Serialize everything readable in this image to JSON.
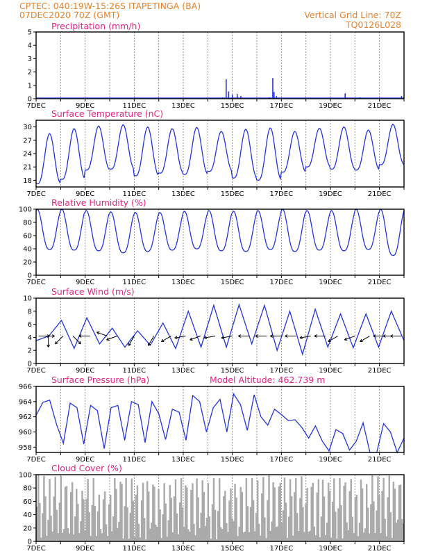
{
  "header": {
    "line1_left": "CPTEC:   040:19W-15:26S   ITAPETINGA (BA)",
    "line2_left": "07DEC2020 70Z (GMT)",
    "line2_right": "Vertical Grid Line: 70Z",
    "line3_right": "TQ0126L028"
  },
  "colors": {
    "header": "#e8822a",
    "title": "#e0257e",
    "line": "#2233dd",
    "bar": "#aaaaaa",
    "grid": "#7a7a7a"
  },
  "x_axis": {
    "labels": [
      "7DEC",
      "9DEC",
      "11DEC",
      "13DEC",
      "15DEC",
      "17DEC",
      "19DEC",
      "21DEC"
    ],
    "days": 15
  },
  "panels": [
    {
      "key": "precip",
      "title": "Precipitation (mm/h)"
    },
    {
      "key": "temp",
      "title": "Surface Temperature (nC)"
    },
    {
      "key": "rh",
      "title": "Relative Humidity (%)"
    },
    {
      "key": "wind",
      "title": "Surface Wind (m/s)"
    },
    {
      "key": "pres",
      "title": "Surface Pressure (hPa)",
      "extra": "Model Altitude: 462.739 m"
    },
    {
      "key": "cloud",
      "title": "Cloud Cover (%)"
    }
  ],
  "chart_data": [
    {
      "type": "bar",
      "title": "Precipitation (mm/h)",
      "ylim": [
        0,
        5
      ],
      "yticks": [
        0,
        1,
        2,
        3,
        4,
        5
      ],
      "x_unit": "days since 7DEC",
      "points": [
        [
          0.1,
          0.02
        ],
        [
          7.6,
          0.1
        ],
        [
          7.75,
          1.45
        ],
        [
          7.85,
          0.55
        ],
        [
          8.0,
          0.3
        ],
        [
          8.2,
          0.35
        ],
        [
          8.35,
          0.2
        ],
        [
          9.5,
          0.1
        ],
        [
          9.65,
          1.55
        ],
        [
          9.7,
          0.5
        ],
        [
          9.8,
          0.2
        ],
        [
          12.6,
          0.4
        ],
        [
          13.2,
          0.1
        ],
        [
          14.9,
          0.2
        ]
      ]
    },
    {
      "type": "line",
      "title": "Surface Temperature (nC)",
      "ylim": [
        16.5,
        31.5
      ],
      "yticks": [
        18,
        21,
        24,
        27,
        30
      ],
      "daily_max": [
        28.5,
        29.6,
        30.2,
        30.5,
        30.0,
        29.6,
        29.9,
        29.0,
        29.5,
        29.8,
        29.0,
        29.7,
        30.0,
        29.3,
        30.6
      ],
      "daily_min": [
        17.2,
        18.2,
        20.3,
        20.5,
        19.0,
        19.6,
        19.3,
        20.0,
        18.5,
        18.0,
        19.8,
        21.0,
        20.5,
        20.3,
        21.5
      ]
    },
    {
      "type": "line",
      "title": "Relative Humidity (%)",
      "ylim": [
        0,
        100
      ],
      "yticks": [
        0,
        20,
        40,
        60,
        80,
        100
      ],
      "daily_max": [
        100,
        100,
        98,
        96,
        95,
        95,
        97,
        98,
        97,
        98,
        100,
        98,
        98,
        100,
        100
      ],
      "daily_min": [
        39,
        38,
        37,
        34,
        36,
        38,
        40,
        37,
        36,
        39,
        36,
        38,
        37,
        39,
        30
      ]
    },
    {
      "type": "line",
      "title": "Surface Wind (m/s)",
      "ylim": [
        0,
        10
      ],
      "yticks": [
        0,
        2,
        4,
        6,
        8,
        10
      ],
      "speed": [
        3.5,
        4.2,
        6.6,
        2.3,
        7.0,
        3.0,
        5.4,
        2.5,
        5.0,
        2.8,
        6.2,
        2.3,
        8.0,
        2.5,
        8.9,
        2.5,
        9.0,
        3.0,
        8.9,
        2.0,
        8.0,
        1.4,
        8.3,
        2.5,
        7.6,
        2.4,
        7.6,
        2.5,
        8.0,
        3.5
      ],
      "vectors": [
        [
          0.1,
          0
        ],
        [
          0.3,
          0
        ],
        [
          0.5,
          90
        ],
        [
          1.1,
          135
        ],
        [
          1.5,
          45
        ],
        [
          2.2,
          180
        ],
        [
          2.9,
          200
        ],
        [
          3.3,
          160
        ],
        [
          4.0,
          120
        ],
        [
          4.8,
          120
        ],
        [
          5.5,
          150
        ],
        [
          6.1,
          170
        ],
        [
          6.7,
          160
        ],
        [
          7.3,
          170
        ],
        [
          8.0,
          170
        ],
        [
          8.7,
          180
        ],
        [
          9.4,
          180
        ],
        [
          10.0,
          180
        ],
        [
          10.6,
          180
        ],
        [
          11.2,
          170
        ],
        [
          11.8,
          180
        ],
        [
          12.3,
          150
        ],
        [
          13.0,
          160
        ],
        [
          13.6,
          150
        ],
        [
          14.2,
          180
        ],
        [
          14.6,
          180
        ],
        [
          14.9,
          180
        ]
      ]
    },
    {
      "type": "line",
      "title": "Surface Pressure (hPa)",
      "ylim": [
        957.3,
        966
      ],
      "yticks": [
        958,
        960,
        962,
        964,
        966
      ],
      "series": [
        962.2,
        963.9,
        964.2,
        961.0,
        958.5,
        963.8,
        963.2,
        958.4,
        963.5,
        962.8,
        957.8,
        963.2,
        963.5,
        958.9,
        964.0,
        963.6,
        958.6,
        964.0,
        962.4,
        959.0,
        963.0,
        962.6,
        958.9,
        964.8,
        964.0,
        960.0,
        963.2,
        964.3,
        960.0,
        965.0,
        963.6,
        960.2,
        964.9,
        962.0,
        960.9,
        963.0,
        962.3,
        961.5,
        961.6,
        960.6,
        959.2,
        960.8,
        958.8,
        957.5,
        960.3,
        959.8,
        957.6,
        958.8,
        961.2,
        957.3,
        957.3,
        961.1,
        960.0,
        957.3,
        959.2
      ]
    },
    {
      "type": "bar",
      "title": "Cloud Cover (%)",
      "ylim": [
        0,
        100
      ],
      "yticks": [
        0,
        20,
        40,
        60,
        80,
        100
      ],
      "daily_max": [
        100,
        98,
        95,
        80,
        95,
        80,
        100,
        95,
        90,
        95,
        88,
        95,
        95,
        95,
        95,
        82,
        90,
        95,
        100,
        97,
        96,
        98,
        98,
        95,
        95,
        98,
        100,
        99,
        100,
        95
      ],
      "daily_min": [
        5,
        12,
        3,
        10,
        8,
        5,
        12,
        4,
        2,
        12,
        5,
        10,
        4,
        18,
        3,
        10,
        2,
        14,
        3,
        10,
        4,
        14,
        2,
        5,
        4,
        10,
        3,
        12,
        5,
        20
      ]
    }
  ]
}
